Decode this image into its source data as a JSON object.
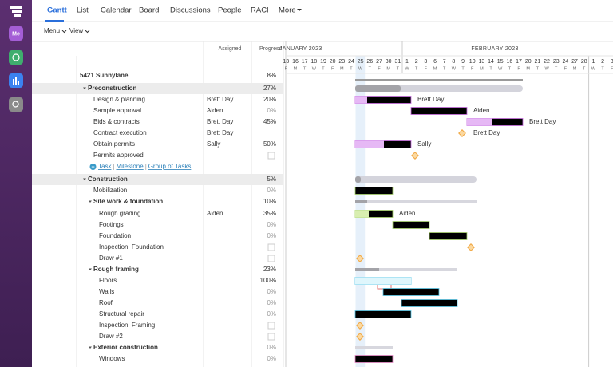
{
  "sidebar": {
    "me": "Me"
  },
  "tabs": [
    "Gantt",
    "List",
    "Calendar",
    "Board",
    "Discussions",
    "People",
    "RACI",
    "More"
  ],
  "toolbar": [
    "Menu",
    "View"
  ],
  "columns": {
    "assigned": "Assigned",
    "progress": "Progress"
  },
  "timeline": {
    "months": [
      "JANUARY 2023",
      "FEBRUARY 2023"
    ],
    "days": [
      13,
      16,
      17,
      18,
      19,
      20,
      23,
      24,
      25,
      26,
      27,
      30,
      31,
      1,
      2,
      3,
      6,
      7,
      8,
      9,
      10,
      13,
      14,
      15,
      16,
      17,
      20,
      21,
      22,
      23,
      24,
      27,
      28,
      1,
      2,
      3
    ],
    "weekdays": [
      "F",
      "M",
      "T",
      "W",
      "T",
      "F",
      "M",
      "T",
      "W",
      "T",
      "F",
      "M",
      "T",
      "W",
      "T",
      "F",
      "M",
      "T",
      "W",
      "T",
      "F",
      "M",
      "T",
      "W",
      "T",
      "F",
      "M",
      "T",
      "W",
      "T",
      "F",
      "M",
      "T",
      "W",
      "T",
      "F"
    ]
  },
  "rows": [
    {
      "name": "5421 Sunnylane",
      "progress": "8%"
    },
    {
      "name": "Preconstruction",
      "progress": "27%"
    },
    {
      "name": "Design & planning",
      "assigned": "Brett Day",
      "progress": "20%"
    },
    {
      "name": "Sample approval",
      "assigned": "Aiden",
      "progress": "0%"
    },
    {
      "name": "Bids & contracts",
      "assigned": "Brett Day",
      "progress": "45%"
    },
    {
      "name": "Contract execution",
      "assigned": "Brett Day"
    },
    {
      "name": "Obtain permits",
      "assigned": "Sally",
      "progress": "50%"
    },
    {
      "name": "Permits approved"
    },
    {
      "name": "Construction",
      "progress": "5%"
    },
    {
      "name": "Mobilization",
      "progress": "0%"
    },
    {
      "name": "Site work & foundation",
      "progress": "10%"
    },
    {
      "name": "Rough grading",
      "assigned": "Aiden",
      "progress": "35%"
    },
    {
      "name": "Footings",
      "progress": "0%"
    },
    {
      "name": "Foundation",
      "progress": "0%"
    },
    {
      "name": "Inspection: Foundation"
    },
    {
      "name": "Draw #1"
    },
    {
      "name": "Rough framing",
      "progress": "23%"
    },
    {
      "name": "Floors",
      "progress": "100%"
    },
    {
      "name": "Walls",
      "progress": "0%"
    },
    {
      "name": "Roof",
      "progress": "0%"
    },
    {
      "name": "Structural repair",
      "progress": "0%"
    },
    {
      "name": "Inspection: Framing"
    },
    {
      "name": "Draw #2"
    },
    {
      "name": "Exterior construction",
      "progress": "0%"
    },
    {
      "name": "Windows",
      "progress": "0%"
    }
  ],
  "add_links": [
    "Task",
    "Milestone",
    "Group of Tasks"
  ]
}
